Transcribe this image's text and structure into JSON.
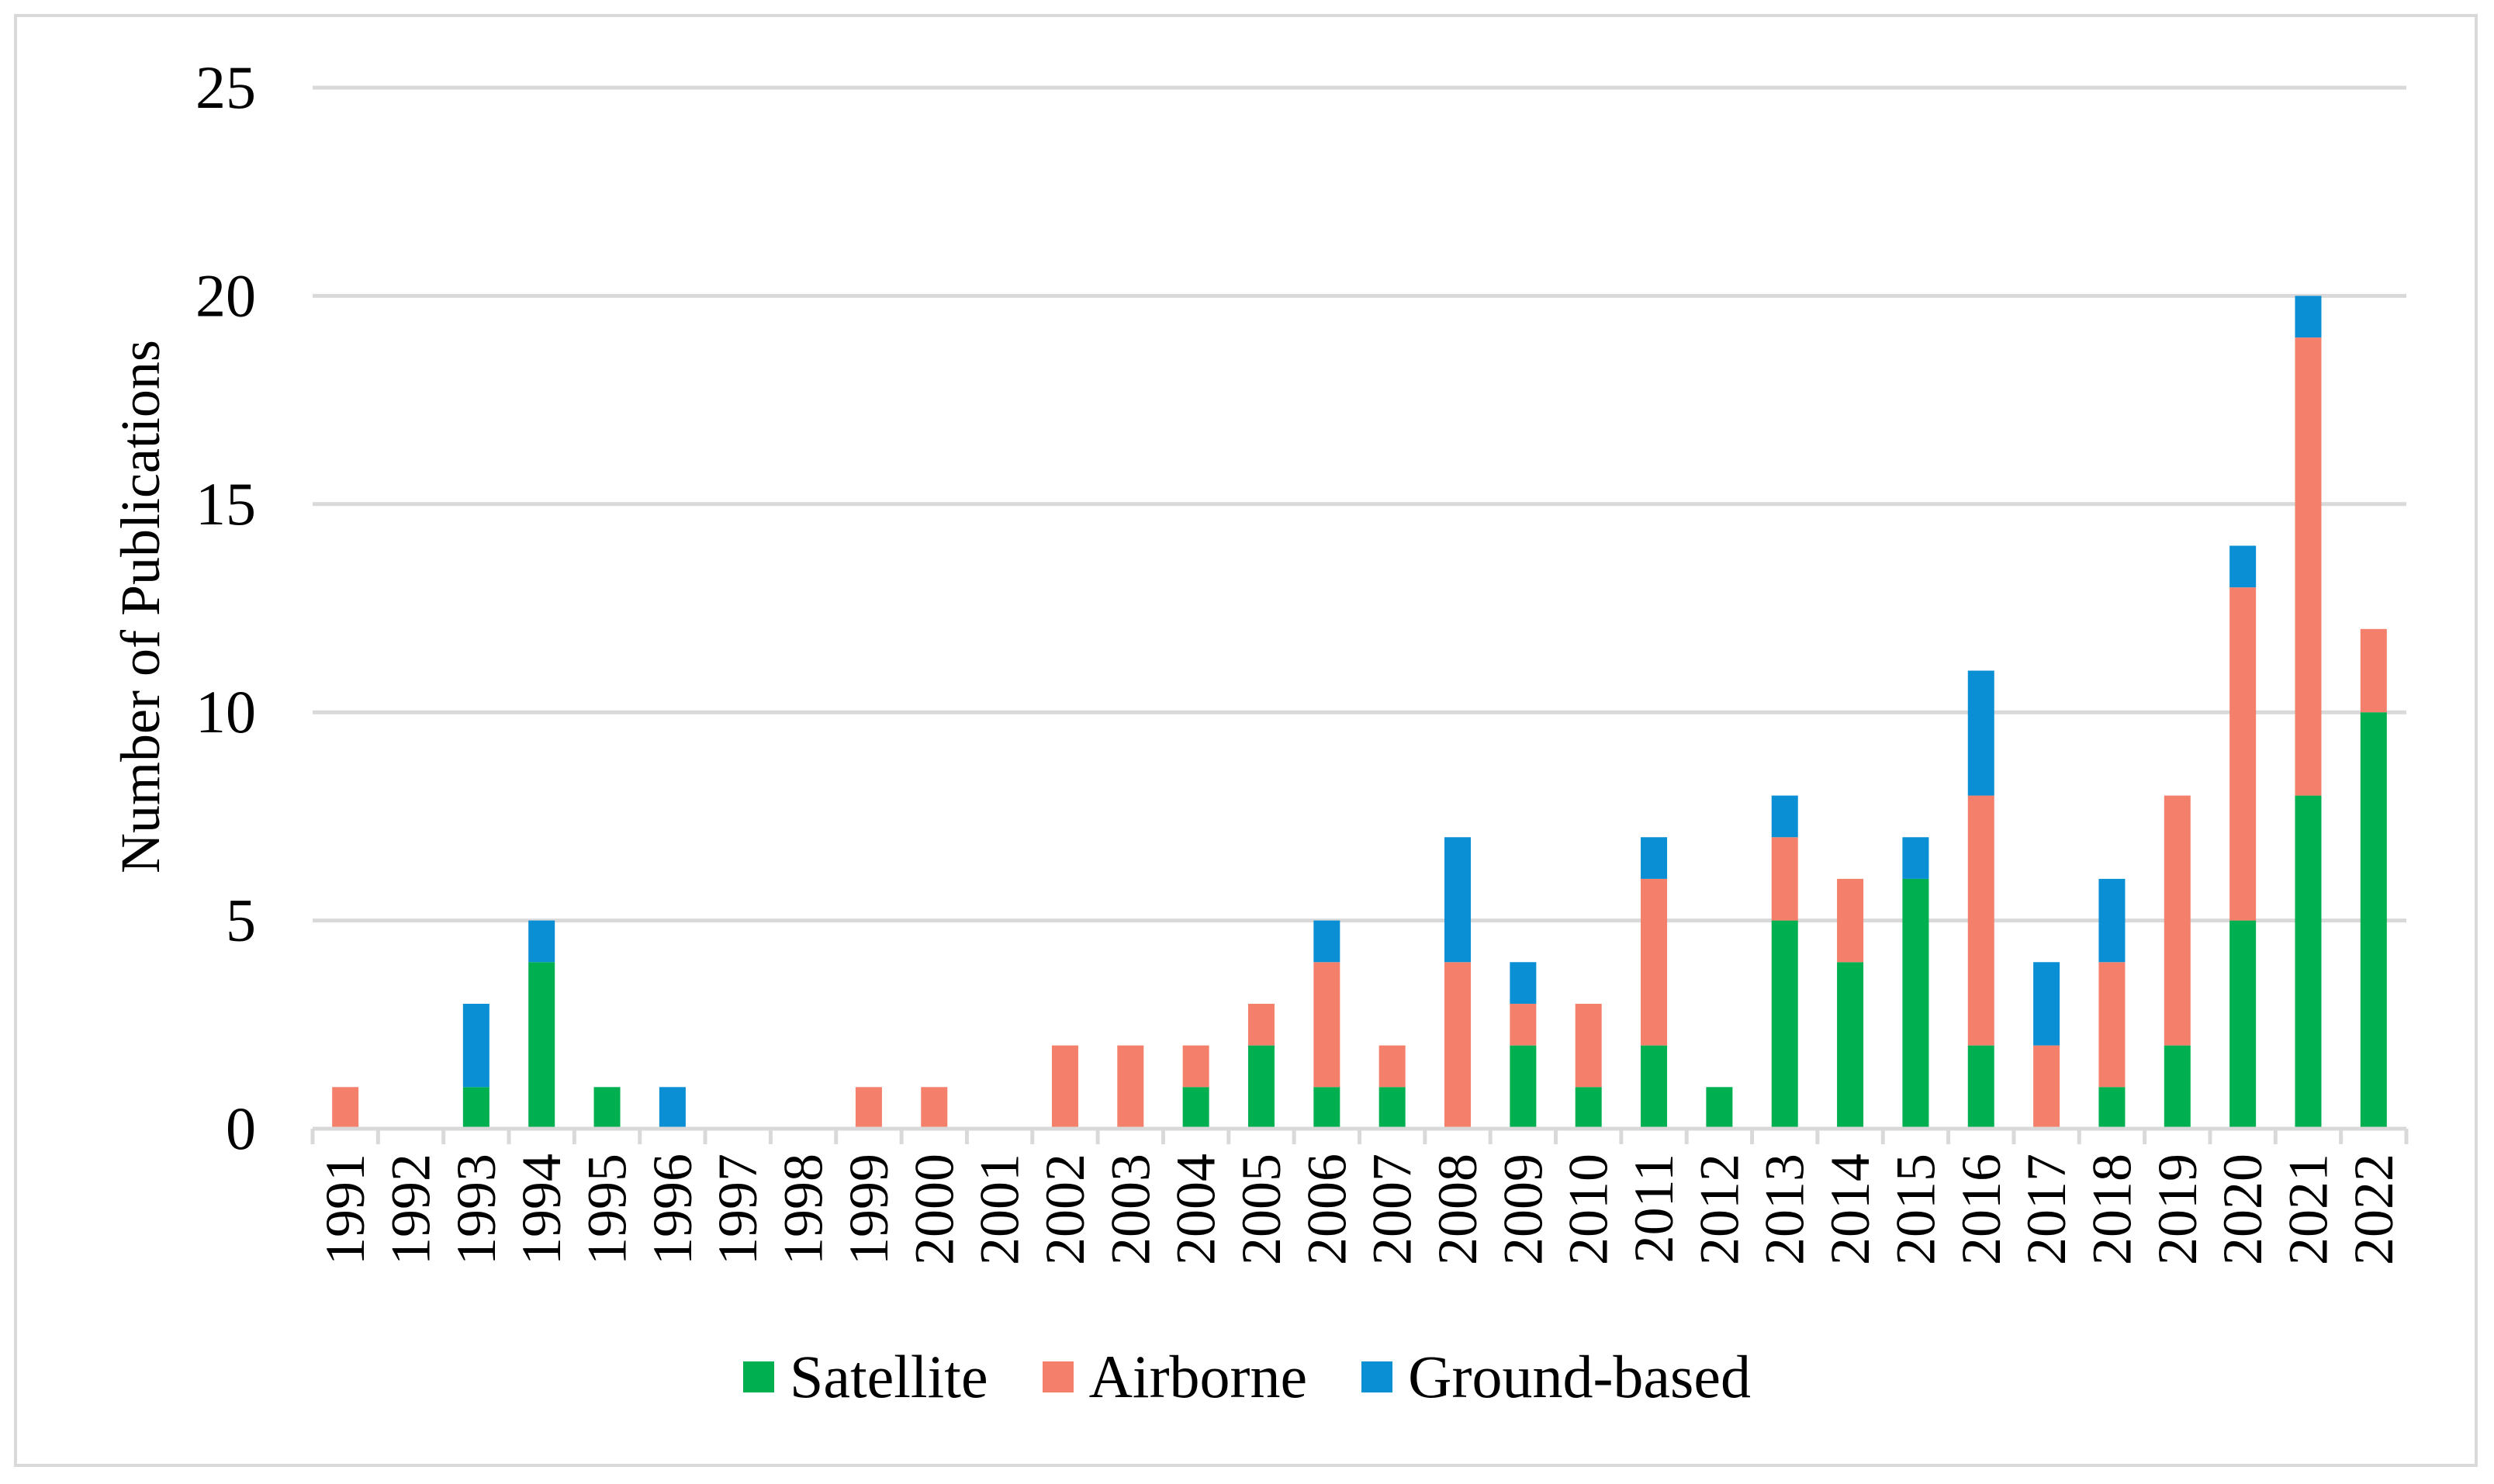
{
  "chart_data": {
    "type": "bar",
    "stacked": true,
    "title": "",
    "xlabel": "",
    "ylabel": "Number of Publications",
    "ylim": [
      0,
      25
    ],
    "yticks": [
      "0",
      "5",
      "10",
      "15",
      "20",
      "25"
    ],
    "grid": true,
    "legend_position": "bottom",
    "categories": [
      "1991",
      "1992",
      "1993",
      "1994",
      "1995",
      "1996",
      "1997",
      "1998",
      "1999",
      "2000",
      "2001",
      "2002",
      "2003",
      "2004",
      "2005",
      "2006",
      "2007",
      "2008",
      "2009",
      "2010",
      "2011",
      "2012",
      "2013",
      "2014",
      "2015",
      "2016",
      "2017",
      "2018",
      "2019",
      "2020",
      "2021",
      "2022"
    ],
    "series": [
      {
        "name": "Satellite",
        "color": "#00b050",
        "values": [
          0,
          0,
          1,
          4,
          1,
          0,
          0,
          0,
          0,
          0,
          0,
          0,
          0,
          1,
          2,
          1,
          1,
          0,
          2,
          1,
          2,
          1,
          5,
          4,
          6,
          2,
          0,
          1,
          2,
          5,
          8,
          10
        ]
      },
      {
        "name": "Airborne",
        "color": "#f4806b",
        "values": [
          1,
          0,
          0,
          0,
          0,
          0,
          0,
          0,
          1,
          1,
          0,
          2,
          2,
          1,
          1,
          3,
          1,
          4,
          1,
          2,
          4,
          0,
          2,
          2,
          0,
          6,
          2,
          3,
          6,
          8,
          11,
          2
        ]
      },
      {
        "name": "Ground-based",
        "color": "#0a8fd4",
        "values": [
          0,
          0,
          2,
          1,
          0,
          1,
          0,
          0,
          0,
          0,
          0,
          0,
          0,
          0,
          0,
          1,
          0,
          3,
          1,
          0,
          1,
          0,
          1,
          0,
          1,
          3,
          2,
          2,
          0,
          1,
          1,
          0
        ]
      }
    ]
  }
}
